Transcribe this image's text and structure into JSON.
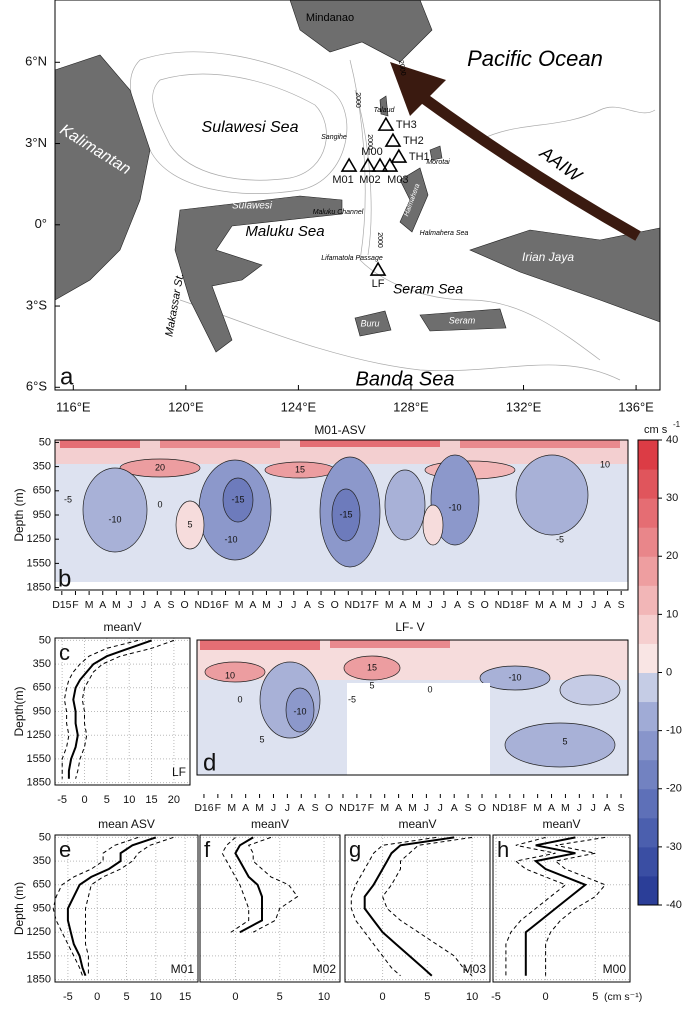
{
  "map": {
    "panel_label": "a",
    "xlim": [
      115.35,
      136.85
    ],
    "ylim": [
      -6.1,
      8.3
    ],
    "xticks": [
      {
        "value": 116,
        "label": "116°E"
      },
      {
        "value": 120,
        "label": "120°E"
      },
      {
        "value": 124,
        "label": "124°E"
      },
      {
        "value": 128,
        "label": "128°E"
      },
      {
        "value": 132,
        "label": "132°E"
      },
      {
        "value": 136,
        "label": "136°E"
      }
    ],
    "yticks": [
      {
        "value": 6,
        "label": "6°N"
      },
      {
        "value": 3,
        "label": "3°N"
      },
      {
        "value": 0,
        "label": "0°"
      },
      {
        "value": -3,
        "label": "3°S"
      },
      {
        "value": -6,
        "label": "6°S"
      }
    ],
    "places": [
      "Mindanao",
      "Pacific Ocean",
      "Kalimantan",
      "Sulawesi Sea",
      "Sulawesi",
      "Maluku Channel",
      "Maluku Sea",
      "Lifamatola Passage",
      "Seram Sea",
      "Buru",
      "Seram",
      "Irian Jaya",
      "Halmahera Sea",
      "Halmahera",
      "Morotai",
      "Talaud",
      "Sangihe",
      "Makassar St.",
      "Banda Sea",
      "AAIW",
      "2000",
      "2000",
      "2000",
      "2000"
    ],
    "stations": [
      {
        "name": "TH3",
        "lon": 127.11,
        "lat": 3.68
      },
      {
        "name": "TH2",
        "lon": 127.36,
        "lat": 3.09
      },
      {
        "name": "TH1",
        "lon": 127.57,
        "lat": 2.5
      },
      {
        "name": "M00",
        "lon": 126.9,
        "lat": 2.17
      },
      {
        "name": "M01",
        "lon": 125.8,
        "lat": 2.17
      },
      {
        "name": "M02",
        "lon": 126.47,
        "lat": 2.17
      },
      {
        "name": "M03",
        "lon": 127.25,
        "lat": 2.17
      },
      {
        "name": "LF",
        "lon": 126.83,
        "lat": -1.67
      }
    ]
  },
  "colorbar": {
    "unit": "cm s",
    "unit_exponent": "-1",
    "lim": [
      -40,
      40
    ],
    "ticks": [
      40,
      30,
      20,
      10,
      0,
      -10,
      -20,
      -30,
      -40
    ],
    "colors": [
      "#2b3e98",
      "#3a4ea3",
      "#4b5fae",
      "#5e70b8",
      "#7282c1",
      "#8895cb",
      "#a0abd6",
      "#c5cce5",
      "#f9e5e4",
      "#f6cfcf",
      "#f2b6b7",
      "#ee9ea0",
      "#e9868a",
      "#e56d73",
      "#e0555c",
      "#dc3c45"
    ]
  },
  "panel_b": {
    "title": "M01-ASV",
    "panel_label": "b",
    "y_label": "Depth (m)",
    "ylim": [
      20,
      1880
    ],
    "yticks": [
      50,
      350,
      650,
      950,
      1250,
      1550,
      1850
    ],
    "categories": [
      "D15",
      "F",
      "M",
      "A",
      "M",
      "J",
      "J",
      "A",
      "S",
      "O",
      "N",
      "D16",
      "F",
      "M",
      "A",
      "M",
      "J",
      "J",
      "A",
      "S",
      "O",
      "N",
      "D17",
      "F",
      "M",
      "A",
      "M",
      "J",
      "J",
      "A",
      "S",
      "O",
      "N",
      "D18",
      "F",
      "M",
      "A",
      "M",
      "J",
      "J",
      "A",
      "S"
    ],
    "contour_labels": [
      20,
      15,
      -5,
      0,
      -15,
      -10,
      -10,
      5,
      -5,
      10,
      -15,
      -10
    ]
  },
  "panel_c": {
    "title": "meanV",
    "panel_label": "c",
    "station": "LF",
    "y_label": "Depth(m)",
    "xlim": [
      -6.6,
      23.6
    ],
    "xticks": [
      -5,
      0,
      5,
      10,
      15,
      20
    ],
    "ylim": [
      20,
      1880
    ],
    "yticks": [
      50,
      350,
      650,
      950,
      1250,
      1550,
      1850
    ],
    "depth": [
      50,
      150,
      250,
      350,
      450,
      550,
      650,
      800,
      950,
      1100,
      1250,
      1400,
      1550,
      1700,
      1800
    ],
    "series": [
      {
        "color": "#000",
        "style": "solid",
        "values": [
          15,
          10,
          5,
          2,
          0.5,
          -1,
          -2,
          -2.5,
          -2,
          -2,
          -1.5,
          -2,
          -3,
          -3.5,
          -3.5
        ]
      },
      {
        "color": "#000",
        "style": "dashed",
        "values": [
          20,
          15,
          8,
          4,
          2,
          1,
          0,
          -0.5,
          0,
          0,
          0.5,
          0,
          -1,
          -1.5,
          -2
        ]
      },
      {
        "color": "#000",
        "style": "dashed",
        "values": [
          12,
          5,
          1,
          -1,
          -2.5,
          -3.5,
          -4,
          -4.5,
          -4,
          -4,
          -3.5,
          -4,
          -5,
          -5,
          -5
        ]
      }
    ]
  },
  "panel_d": {
    "title": "LF- V",
    "panel_label": "d",
    "categories": [
      "D16",
      "F",
      "M",
      "A",
      "M",
      "J",
      "J",
      "A",
      "S",
      "O",
      "N",
      "D17",
      "F",
      "M",
      "A",
      "M",
      "J",
      "J",
      "A",
      "S",
      "O",
      "N",
      "D18",
      "F",
      "M",
      "A",
      "M",
      "J",
      "J",
      "A",
      "S"
    ],
    "contour_labels": [
      10,
      15,
      5,
      -10,
      -5,
      0,
      5,
      -10,
      0,
      5
    ]
  },
  "panel_e": {
    "title": "mean ASV",
    "panel_label": "e",
    "station": "M01",
    "y_label": "Depth (m)",
    "xlim": [
      -7.2,
      17.2
    ],
    "xticks": [
      -5,
      0,
      5,
      10,
      15
    ],
    "ylim": [
      20,
      1880
    ],
    "yticks": [
      50,
      350,
      650,
      950,
      1250,
      1550,
      1850
    ],
    "depth": [
      50,
      150,
      250,
      350,
      450,
      550,
      650,
      800,
      950,
      1100,
      1250,
      1400,
      1550,
      1700,
      1800
    ],
    "series": [
      {
        "color": "#000",
        "style": "solid",
        "values": [
          10,
          6,
          4,
          4,
          2,
          -1,
          -3,
          -4,
          -5,
          -5,
          -4.5,
          -4,
          -3,
          -2.5,
          -2
        ]
      },
      {
        "color": "#000",
        "style": "dashed",
        "values": [
          13,
          9,
          7,
          6,
          4,
          1,
          -1,
          -1.5,
          -2,
          -2,
          -2,
          -2,
          -1.5,
          -1.5,
          -1.5
        ]
      },
      {
        "color": "#000",
        "style": "dashed",
        "values": [
          7,
          3,
          1,
          1,
          -1,
          -4,
          -6,
          -7,
          -7.5,
          -7,
          -6,
          -5,
          -4,
          -3,
          -2.5
        ]
      }
    ]
  },
  "panel_f": {
    "title": "meanV",
    "panel_label": "f",
    "station": "M02",
    "xlim": [
      -4,
      11.8
    ],
    "xticks": [
      0,
      5,
      10
    ],
    "ylim": [
      20,
      1880
    ],
    "depth": [
      50,
      150,
      250,
      350,
      450,
      550,
      650,
      800,
      950,
      1100,
      1250,
      1400,
      1550,
      1700,
      1800
    ],
    "series": [
      {
        "color": "#000",
        "style": "solid",
        "values": [
          2,
          0.5,
          0,
          0.5,
          1,
          1.5,
          2.5,
          3,
          3,
          3,
          0.5,
          null,
          null,
          null,
          null
        ]
      },
      {
        "color": "#000",
        "style": "dashed",
        "values": [
          4,
          1.5,
          2,
          2,
          3,
          4,
          6,
          7,
          5,
          4.5,
          2,
          null,
          null,
          null,
          null
        ]
      },
      {
        "color": "#000",
        "style": "dashed",
        "values": [
          0,
          -1,
          -1.5,
          -1,
          -0.5,
          0,
          0.5,
          1,
          1.5,
          1.5,
          -0.5,
          null,
          null,
          null,
          null
        ]
      }
    ]
  },
  "panel_g": {
    "title": "meanV",
    "panel_label": "g",
    "station": "M03",
    "xlim": [
      -4.2,
      12
    ],
    "xticks": [
      0,
      5,
      10
    ],
    "ylim": [
      20,
      1880
    ],
    "depth": [
      50,
      150,
      250,
      350,
      450,
      550,
      650,
      800,
      950,
      1100,
      1250,
      1400,
      1550,
      1700,
      1800
    ],
    "series": [
      {
        "color": "#000",
        "style": "solid",
        "values": [
          8,
          2,
          1,
          0.5,
          0,
          -0.5,
          -1,
          -2,
          -2,
          -1,
          0,
          1.5,
          3,
          4.5,
          5.5
        ]
      },
      {
        "color": "#000",
        "style": "dashed",
        "values": [
          10,
          4,
          3,
          2,
          2,
          1.5,
          1,
          0,
          0.5,
          2,
          4,
          6,
          8,
          9,
          10
        ]
      },
      {
        "color": "#000",
        "style": "dashed",
        "values": [
          6,
          0,
          -1,
          -1.5,
          -2,
          -2.5,
          -3,
          -3.5,
          -3.5,
          -3,
          -2,
          -1,
          0,
          1,
          2
        ]
      }
    ]
  },
  "panel_h": {
    "title": "meanV",
    "panel_label": "h",
    "station": "M00",
    "unit": "(cm s⁻¹)",
    "xlim": [
      -5.3,
      8.5
    ],
    "xticks": [
      -5,
      0,
      5
    ],
    "ylim": [
      20,
      1880
    ],
    "depth": [
      50,
      150,
      250,
      350,
      450,
      550,
      650,
      800,
      950,
      1100,
      1250,
      1400,
      1550,
      1700,
      1800
    ],
    "series": [
      {
        "color": "#000",
        "style": "solid",
        "values": [
          3,
          -1,
          3,
          -1,
          0,
          2,
          4,
          2.5,
          1,
          -0.5,
          -2,
          -2,
          -2,
          -2,
          -2
        ]
      },
      {
        "color": "#000",
        "style": "dashed",
        "values": [
          6,
          1,
          5,
          1,
          2,
          4,
          6,
          5,
          3,
          1.5,
          0.5,
          0,
          0,
          0,
          0
        ]
      },
      {
        "color": "#000",
        "style": "dashed",
        "values": [
          0,
          -3,
          1,
          -3,
          -2,
          0,
          2,
          0.5,
          -1,
          -2.5,
          -3.5,
          -4,
          -4,
          -4,
          -4
        ]
      }
    ]
  }
}
